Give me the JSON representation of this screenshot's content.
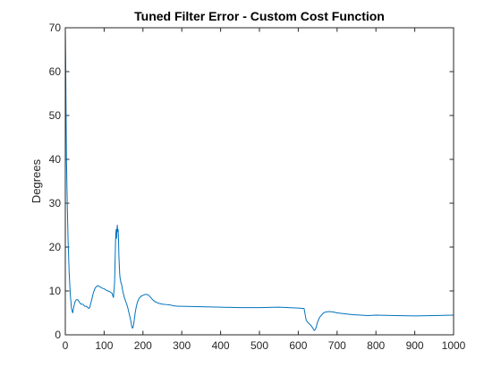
{
  "chart_data": {
    "type": "line",
    "title": "Tuned Filter Error - Custom Cost Function",
    "xlabel": "",
    "ylabel": "Degrees",
    "xlim": [
      0,
      1000
    ],
    "ylim": [
      0,
      70
    ],
    "xticks": [
      0,
      100,
      200,
      300,
      400,
      500,
      600,
      700,
      800,
      900,
      1000
    ],
    "yticks": [
      0,
      10,
      20,
      30,
      40,
      50,
      60,
      70
    ],
    "grid": false,
    "box": true,
    "series": [
      {
        "color": "#0072bd",
        "x": [
          0,
          1,
          2,
          3,
          5,
          7,
          10,
          13,
          16,
          19,
          22,
          25,
          28,
          32,
          36,
          40,
          45,
          50,
          55,
          60,
          63,
          65,
          68,
          72,
          76,
          80,
          84,
          88,
          92,
          96,
          100,
          105,
          110,
          115,
          120,
          124,
          127,
          129,
          130,
          131,
          132,
          133,
          134,
          135,
          136,
          137,
          138,
          139,
          140,
          141,
          142,
          143,
          145,
          148,
          152,
          156,
          160,
          164,
          168,
          171,
          173,
          175,
          177,
          180,
          183,
          186,
          190,
          195,
          200,
          205,
          210,
          215,
          220,
          225,
          230,
          240,
          250,
          260,
          270,
          280,
          290,
          300,
          350,
          400,
          450,
          500,
          550,
          600,
          615,
          618,
          620,
          623,
          627,
          632,
          637,
          641,
          644,
          647,
          650,
          655,
          660,
          665,
          670,
          680,
          690,
          700,
          720,
          740,
          760,
          780,
          800,
          850,
          900,
          950,
          1000
        ],
        "y": [
          70,
          62,
          50,
          40,
          30,
          22,
          14,
          9,
          6,
          5,
          6.5,
          7.5,
          8,
          8,
          7.5,
          7,
          7,
          6.5,
          6.5,
          6,
          6.2,
          7,
          8,
          9.5,
          10.5,
          11,
          11.2,
          11,
          10.8,
          10.6,
          10.5,
          10.2,
          10,
          9.8,
          9.5,
          8.5,
          12,
          20,
          23,
          24,
          22,
          24,
          25,
          23.5,
          24,
          22,
          18,
          16,
          14,
          13,
          12.5,
          12,
          11.5,
          10,
          8.5,
          7.5,
          6.5,
          5,
          3.5,
          2,
          1.5,
          1.8,
          3,
          5,
          6.5,
          7.5,
          8.3,
          8.8,
          9,
          9.2,
          9.2,
          9,
          8.5,
          8,
          7.6,
          7.2,
          7,
          6.9,
          6.8,
          6.6,
          6.5,
          6.5,
          6.4,
          6.3,
          6.2,
          6.2,
          6.3,
          6.1,
          6,
          4.5,
          3.5,
          3,
          2.6,
          2.2,
          1.6,
          1,
          1.2,
          2,
          3,
          4,
          4.5,
          5,
          5.2,
          5.3,
          5.2,
          5,
          4.8,
          4.6,
          4.5,
          4.4,
          4.5,
          4.4,
          4.3,
          4.4,
          4.5
        ]
      }
    ]
  }
}
